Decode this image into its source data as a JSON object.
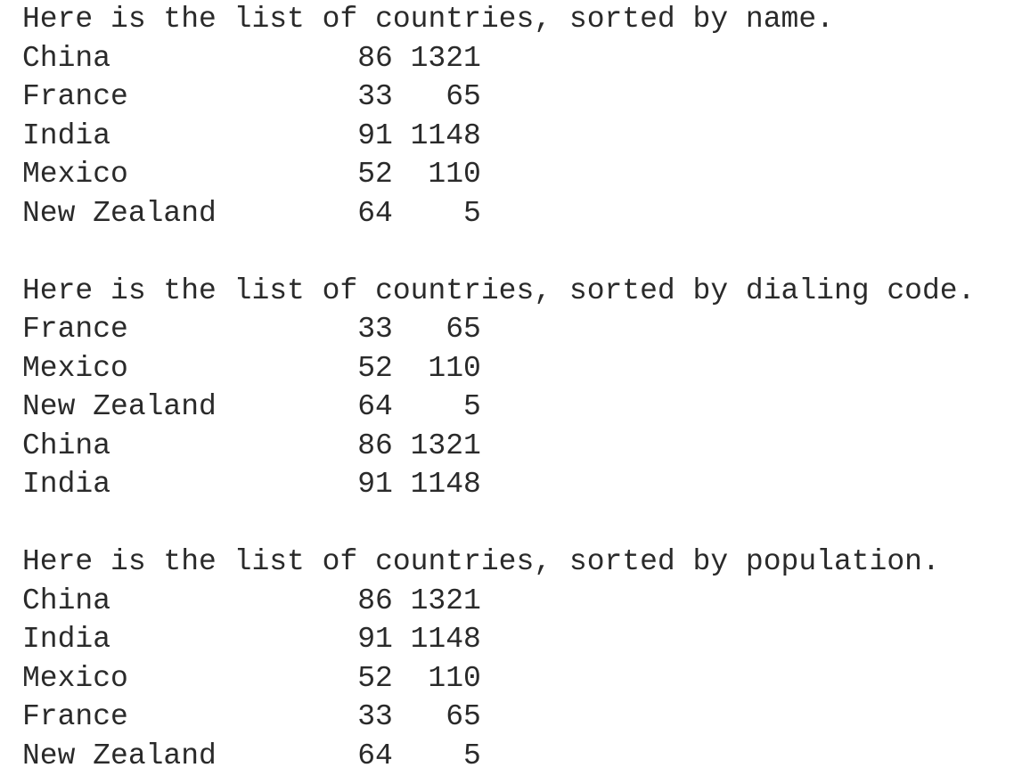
{
  "sections": [
    {
      "heading": "Here is the list of countries, sorted by name.",
      "rows": [
        [
          "China",
          86,
          1321
        ],
        [
          "France",
          33,
          65
        ],
        [
          "India",
          91,
          1148
        ],
        [
          "Mexico",
          52,
          110
        ],
        [
          "New Zealand",
          64,
          5
        ]
      ]
    },
    {
      "heading": "Here is the list of countries, sorted by dialing code.",
      "rows": [
        [
          "France",
          33,
          65
        ],
        [
          "Mexico",
          52,
          110
        ],
        [
          "New Zealand",
          64,
          5
        ],
        [
          "China",
          86,
          1321
        ],
        [
          "India",
          91,
          1148
        ]
      ]
    },
    {
      "heading": "Here is the list of countries, sorted by population.",
      "rows": [
        [
          "China",
          86,
          1321
        ],
        [
          "India",
          91,
          1148
        ],
        [
          "Mexico",
          52,
          110
        ],
        [
          "France",
          33,
          65
        ],
        [
          "New Zealand",
          64,
          5
        ]
      ]
    }
  ]
}
